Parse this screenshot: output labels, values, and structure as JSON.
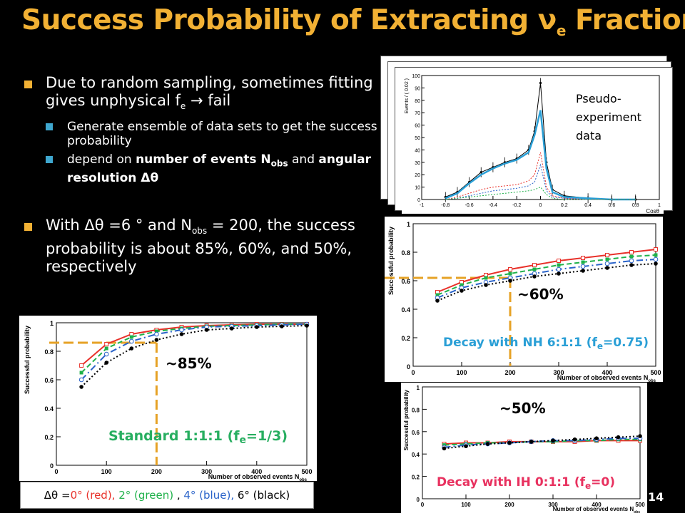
{
  "slide": {
    "title_main": "Success Probability of Extracting ν",
    "title_sub": "e",
    "title_tail": " Fraction",
    "page_number": "14"
  },
  "bullets": {
    "b1_text_a": "Due to random sampling, sometimes fitting gives unphysical f",
    "b1_sub": "e",
    "b1_text_b": " → fail",
    "b1a_text": "Generate ensemble of data sets to get the success probability",
    "b1b_text_a": "depend on ",
    "b1b_bold_a": "number of events N",
    "b1b_bold_sub": "obs",
    "b1b_text_b": " and ",
    "b1b_bold_b": "angular resolution Δθ",
    "b2_text_a": "With Δθ =6 ° and N",
    "b2_sub": "obs",
    "b2_text_b": " = 200, the success probability is about 85%, 60%, and 50%, respectively"
  },
  "legend": {
    "prefix": "Δθ =",
    "red": "0° (red),",
    "green": "2° (green)",
    "sep": " , ",
    "blue": "4° (blue),",
    "black": "6° (black)",
    "colors": {
      "red": "#e8312a",
      "green": "#1fb14a",
      "blue": "#2a63c9",
      "black": "#000000",
      "orange": "#e6a226",
      "teal": "#27ae60",
      "pink": "#e8315f",
      "lightblue": "#2a9fd6"
    }
  },
  "chart_data": [
    {
      "type": "line",
      "label_annot": "~85%",
      "caption_a": "Standard 1:1:1 (f",
      "caption_sub": "e",
      "caption_b": "=1/3)",
      "xlabel": "Number of observed events N",
      "xlabel_sub": "obs",
      "ylabel": "Successful probability",
      "xlim": [
        0,
        500
      ],
      "ylim": [
        0,
        1
      ],
      "xticks": [
        "0",
        "100",
        "200",
        "300",
        "400",
        "500"
      ],
      "yticks": [
        "0",
        "0.2",
        "0.4",
        "0.6",
        "0.8",
        "1"
      ],
      "x": [
        50,
        100,
        150,
        200,
        250,
        300,
        350,
        400,
        450,
        500
      ],
      "series": [
        {
          "color": "red",
          "values": [
            0.7,
            0.85,
            0.92,
            0.95,
            0.97,
            0.98,
            0.985,
            0.99,
            0.99,
            0.99
          ]
        },
        {
          "color": "green",
          "values": [
            0.65,
            0.82,
            0.9,
            0.94,
            0.96,
            0.975,
            0.98,
            0.985,
            0.99,
            0.99
          ]
        },
        {
          "color": "blue",
          "values": [
            0.6,
            0.78,
            0.87,
            0.92,
            0.95,
            0.97,
            0.975,
            0.98,
            0.985,
            0.99
          ]
        },
        {
          "color": "black",
          "values": [
            0.55,
            0.72,
            0.82,
            0.88,
            0.92,
            0.95,
            0.96,
            0.97,
            0.975,
            0.98
          ]
        }
      ],
      "marker": {
        "x": 200,
        "y": 0.86
      }
    },
    {
      "type": "line",
      "label_annot": "~60%",
      "caption_a": "Decay with NH 6:1:1 (f",
      "caption_sub": "e",
      "caption_b": "=0.75)",
      "xlabel": "Number of observed events N",
      "xlabel_sub": "obs",
      "ylabel": "Successful probability",
      "xlim": [
        0,
        500
      ],
      "ylim": [
        0,
        1
      ],
      "xticks": [
        "0",
        "100",
        "200",
        "300",
        "400",
        "500"
      ],
      "yticks": [
        "0",
        "0.2",
        "0.4",
        "0.6",
        "0.8",
        "1"
      ],
      "x": [
        50,
        100,
        150,
        200,
        250,
        300,
        350,
        400,
        450,
        500
      ],
      "series": [
        {
          "color": "red",
          "values": [
            0.52,
            0.59,
            0.64,
            0.68,
            0.71,
            0.74,
            0.76,
            0.78,
            0.8,
            0.82
          ]
        },
        {
          "color": "green",
          "values": [
            0.5,
            0.57,
            0.62,
            0.65,
            0.68,
            0.71,
            0.73,
            0.75,
            0.77,
            0.78
          ]
        },
        {
          "color": "blue",
          "values": [
            0.48,
            0.55,
            0.59,
            0.62,
            0.65,
            0.68,
            0.7,
            0.72,
            0.74,
            0.75
          ]
        },
        {
          "color": "black",
          "values": [
            0.46,
            0.53,
            0.57,
            0.6,
            0.63,
            0.65,
            0.67,
            0.69,
            0.71,
            0.72
          ]
        }
      ],
      "marker": {
        "x": 200,
        "y": 0.62
      }
    },
    {
      "type": "line",
      "label_annot": "~50%",
      "caption_a": "Decay with IH 0:1:1 (f",
      "caption_sub": "e",
      "caption_b": "=0)",
      "xlabel": "Number of observed events N",
      "xlabel_sub": "obs",
      "ylabel": "Successful probability",
      "xlim": [
        0,
        500
      ],
      "ylim": [
        0,
        1
      ],
      "xticks": [
        "0",
        "100",
        "200",
        "300",
        "400",
        "500"
      ],
      "yticks": [
        "0",
        "0.2",
        "0.4",
        "0.6",
        "0.8",
        "1"
      ],
      "x": [
        50,
        100,
        150,
        200,
        250,
        300,
        350,
        400,
        450,
        500
      ],
      "series": [
        {
          "color": "red",
          "values": [
            0.49,
            0.5,
            0.5,
            0.51,
            0.51,
            0.51,
            0.51,
            0.52,
            0.52,
            0.52
          ]
        },
        {
          "color": "green",
          "values": [
            0.48,
            0.49,
            0.5,
            0.5,
            0.51,
            0.51,
            0.52,
            0.52,
            0.53,
            0.53
          ]
        },
        {
          "color": "blue",
          "values": [
            0.46,
            0.48,
            0.49,
            0.5,
            0.51,
            0.52,
            0.52,
            0.53,
            0.54,
            0.54
          ]
        },
        {
          "color": "black",
          "values": [
            0.45,
            0.47,
            0.49,
            0.5,
            0.51,
            0.52,
            0.53,
            0.54,
            0.55,
            0.56
          ]
        }
      ]
    },
    {
      "type": "line",
      "label_annot": "Pseudo-\nexperiment\ndata",
      "xlabel": "Cosθ",
      "ylabel": "Events / ( 0.02 )",
      "xlim": [
        -1,
        1
      ],
      "ylim": [
        0,
        100
      ],
      "xticks": [
        "-1",
        "-0.8",
        "-0.6",
        "-0.4",
        "-0.2",
        "0",
        "0.2",
        "0.4",
        "0.6",
        "0.8",
        "1"
      ],
      "yticks": [
        "0",
        "10",
        "20",
        "30",
        "40",
        "50",
        "60",
        "70",
        "80",
        "90",
        "100"
      ],
      "x": [
        -0.8,
        -0.7,
        -0.6,
        -0.5,
        -0.4,
        -0.3,
        -0.2,
        -0.1,
        -0.05,
        0,
        0.05,
        0.1,
        0.2,
        0.4,
        0.6,
        0.8
      ],
      "series": [
        {
          "color": "black",
          "values": [
            2,
            6,
            14,
            22,
            26,
            30,
            33,
            40,
            55,
            94,
            30,
            8,
            3,
            1,
            0,
            0
          ]
        },
        {
          "color": "lightblue",
          "values": [
            1,
            5,
            13,
            20,
            25,
            29,
            32,
            38,
            52,
            72,
            25,
            6,
            2,
            1,
            0,
            0
          ]
        },
        {
          "color": "red",
          "values": [
            0,
            2,
            5,
            8,
            10,
            11,
            12,
            15,
            20,
            38,
            10,
            3,
            1,
            0,
            0,
            0
          ]
        },
        {
          "color": "blue",
          "values": [
            0,
            1,
            3,
            5,
            7,
            8,
            9,
            11,
            14,
            28,
            7,
            2,
            1,
            0,
            0,
            0
          ]
        },
        {
          "color": "green",
          "values": [
            0,
            1,
            2,
            3,
            4,
            5,
            6,
            7,
            8,
            10,
            4,
            1,
            0,
            0,
            0,
            0
          ]
        }
      ]
    }
  ]
}
